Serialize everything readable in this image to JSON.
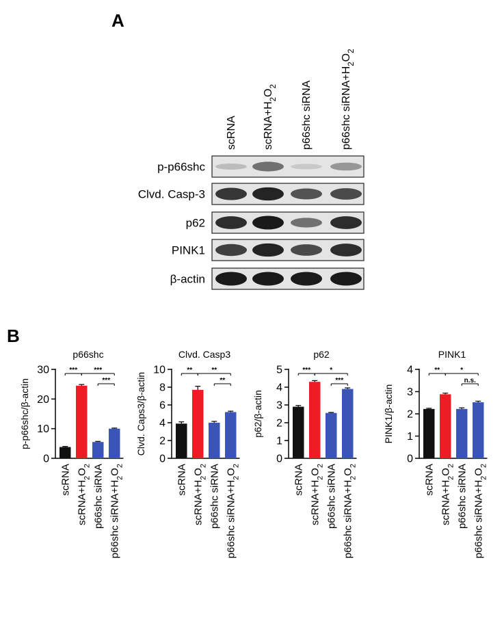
{
  "panels": {
    "a": "A",
    "b": "B"
  },
  "blot": {
    "lanes": [
      "scRNA",
      "scRNA+H2O2",
      "p66shc siRNA",
      "p66shc siRNA+H2O2"
    ],
    "rows": [
      {
        "label": "p-p66shc",
        "intensity": [
          0.15,
          0.55,
          0.08,
          0.35
        ]
      },
      {
        "label": "Clvd. Casp-3",
        "intensity": [
          0.85,
          0.95,
          0.7,
          0.75
        ]
      },
      {
        "label": "p62",
        "intensity": [
          0.9,
          1.0,
          0.55,
          0.9
        ]
      },
      {
        "label": "PINK1",
        "intensity": [
          0.8,
          0.95,
          0.75,
          0.9
        ]
      },
      {
        "label": "β-actin",
        "intensity": [
          1.0,
          1.0,
          1.0,
          1.0
        ]
      }
    ]
  },
  "colors": {
    "black": "#111111",
    "red": "#ee1c24",
    "blue": "#3a55b5"
  },
  "chart_data": [
    {
      "type": "bar",
      "title": "p66shc",
      "ylabel": "p-p66shc/β-actin",
      "categories": [
        "scRNA",
        "scRNA+H2O2",
        "p66shc siRNA",
        "p66shc siRNA+H2O2"
      ],
      "values": [
        3.8,
        24.5,
        5.5,
        10.0
      ],
      "errors": [
        0.2,
        0.4,
        0.2,
        0.2
      ],
      "ylim": [
        0,
        30
      ],
      "yticks": [
        0,
        10,
        20,
        30
      ],
      "colors": [
        "#111111",
        "#ee1c24",
        "#3a55b5",
        "#3a55b5"
      ],
      "significance": [
        {
          "from": 0,
          "to": 1,
          "label": "***"
        },
        {
          "from": 1,
          "to": 3,
          "label": "***"
        },
        {
          "from": 2,
          "to": 3,
          "label": "***"
        }
      ]
    },
    {
      "type": "bar",
      "title": "Clvd. Casp3",
      "ylabel": "Clvd. Caps3/β-actin",
      "categories": [
        "scRNA",
        "scRNA+H2O2",
        "p66shc siRNA",
        "p66shc siRNA+H2O2"
      ],
      "values": [
        3.9,
        7.7,
        4.0,
        5.2
      ],
      "errors": [
        0.2,
        0.4,
        0.15,
        0.1
      ],
      "ylim": [
        0,
        10
      ],
      "yticks": [
        0,
        2,
        4,
        6,
        8,
        10
      ],
      "colors": [
        "#111111",
        "#ee1c24",
        "#3a55b5",
        "#3a55b5"
      ],
      "significance": [
        {
          "from": 0,
          "to": 1,
          "label": "**"
        },
        {
          "from": 1,
          "to": 3,
          "label": "**"
        },
        {
          "from": 2,
          "to": 3,
          "label": "**"
        }
      ]
    },
    {
      "type": "bar",
      "title": "p62",
      "ylabel": "p62/β-actin",
      "categories": [
        "scRNA",
        "scRNA+H2O2",
        "p66shc siRNA",
        "p66shc siRNA+H2O2"
      ],
      "values": [
        2.9,
        4.3,
        2.55,
        3.9
      ],
      "errors": [
        0.07,
        0.07,
        0.03,
        0.06
      ],
      "ylim": [
        0,
        5
      ],
      "yticks": [
        0,
        1,
        2,
        3,
        4,
        5
      ],
      "colors": [
        "#111111",
        "#ee1c24",
        "#3a55b5",
        "#3a55b5"
      ],
      "significance": [
        {
          "from": 0,
          "to": 1,
          "label": "***"
        },
        {
          "from": 1,
          "to": 3,
          "label": "*"
        },
        {
          "from": 2,
          "to": 3,
          "label": "***"
        }
      ]
    },
    {
      "type": "bar",
      "title": "PINK1",
      "ylabel": "PINK1/β-actin",
      "categories": [
        "scRNA",
        "scRNA+H2O2",
        "p66shc siRNA",
        "p66shc siRNA+H2O2"
      ],
      "values": [
        2.22,
        2.88,
        2.22,
        2.52
      ],
      "errors": [
        0.03,
        0.05,
        0.05,
        0.05
      ],
      "ylim": [
        0,
        4
      ],
      "yticks": [
        0,
        1,
        2,
        3,
        4
      ],
      "colors": [
        "#111111",
        "#ee1c24",
        "#3a55b5",
        "#3a55b5"
      ],
      "significance": [
        {
          "from": 0,
          "to": 1,
          "label": "**"
        },
        {
          "from": 1,
          "to": 3,
          "label": "*"
        },
        {
          "from": 2,
          "to": 3,
          "label": "n.s."
        }
      ]
    }
  ]
}
